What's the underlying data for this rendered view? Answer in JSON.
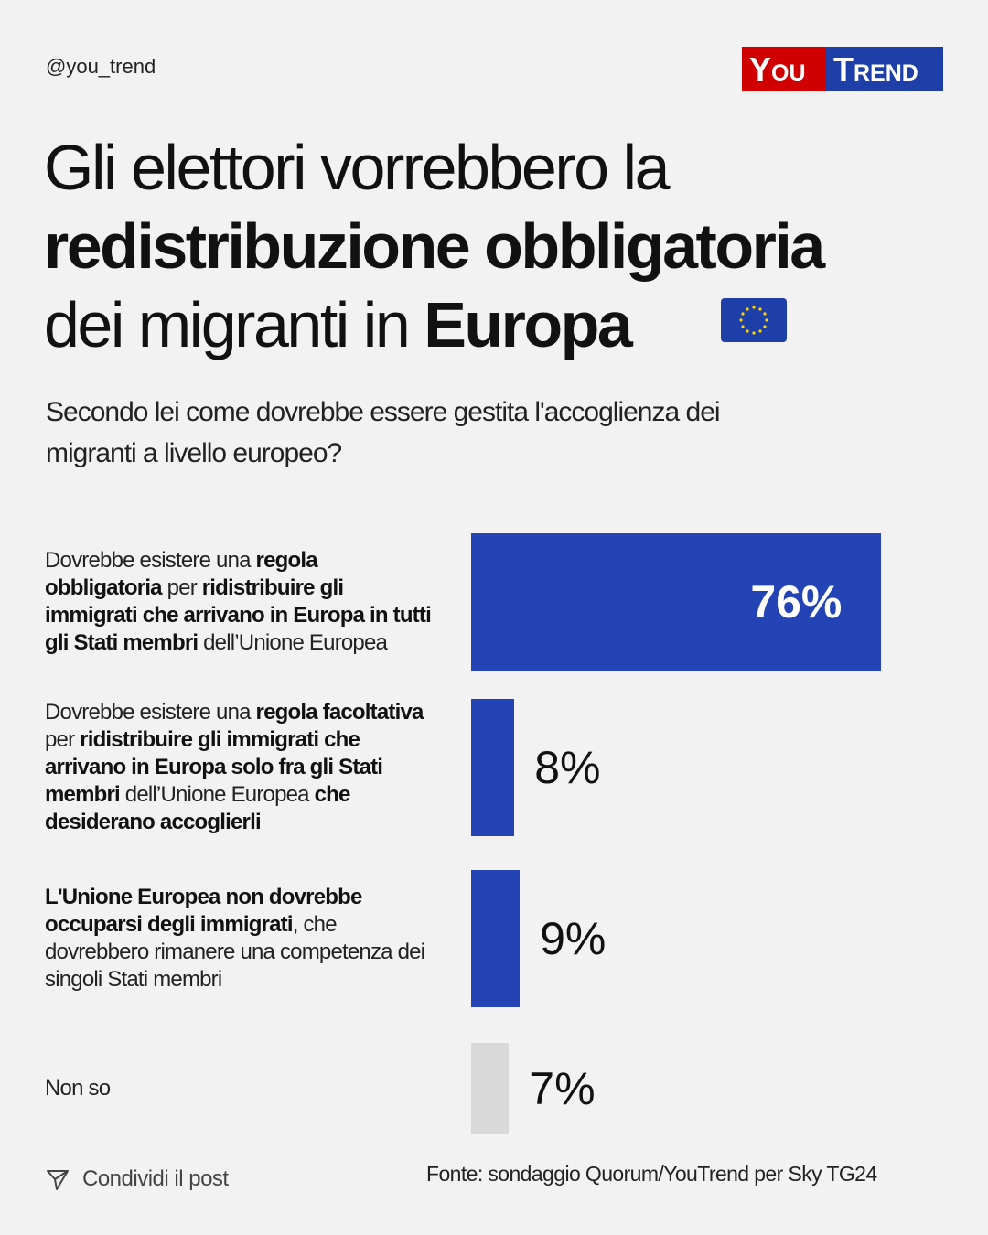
{
  "handle": "@you_trend",
  "logo": {
    "left": "You",
    "right": "Trend"
  },
  "chart_data": {
    "type": "bar",
    "title": [
      [
        {
          "text": "Gli elettori vorrebbero la",
          "bold": false
        }
      ],
      [
        {
          "text": "redistribuzione obbligatoria",
          "bold": true
        }
      ],
      [
        {
          "text": "dei migranti in ",
          "bold": false
        },
        {
          "text": "Europa",
          "bold": true
        }
      ]
    ],
    "subtitle": "Secondo lei come dovrebbe essere gestita l'accoglienza dei migranti a livello europeo?",
    "categories": [
      [
        {
          "text": "Dovrebbe esistere una ",
          "bold": false
        },
        {
          "text": "regola obbligatoria",
          "bold": true
        },
        {
          "text": " per ",
          "bold": false
        },
        {
          "text": "ridistribuire gli immigrati che arrivano in Europa in tutti gli Stati membri",
          "bold": true
        },
        {
          "text": " dell’Unione Europea",
          "bold": false
        }
      ],
      [
        {
          "text": "Dovrebbe esistere una ",
          "bold": false
        },
        {
          "text": "regola facoltativa",
          "bold": true
        },
        {
          "text": " per ",
          "bold": false
        },
        {
          "text": "ridistribuire gli immigrati che arrivano in Europa solo fra gli Stati membri",
          "bold": true
        },
        {
          "text": " dell’Unione Europea ",
          "bold": false
        },
        {
          "text": "che desiderano accoglierli",
          "bold": true
        }
      ],
      [
        {
          "text": "L'Unione Europea non dovrebbe occuparsi degli immigrati",
          "bold": true
        },
        {
          "text": ", che dovrebbero rimanere una competenza dei singoli Stati membri",
          "bold": false
        }
      ],
      [
        {
          "text": "Non so",
          "bold": false
        }
      ]
    ],
    "values": [
      76,
      8,
      9,
      7
    ],
    "value_labels": [
      "76%",
      "8%",
      "9%",
      "7%"
    ],
    "colors": [
      "#2443b5",
      "#2443b5",
      "#2443b5",
      "#d9d9d9"
    ],
    "source": "Fonte: sondaggio Quorum/YouTrend per Sky TG24"
  },
  "footer": {
    "share": "Condividi il post"
  }
}
